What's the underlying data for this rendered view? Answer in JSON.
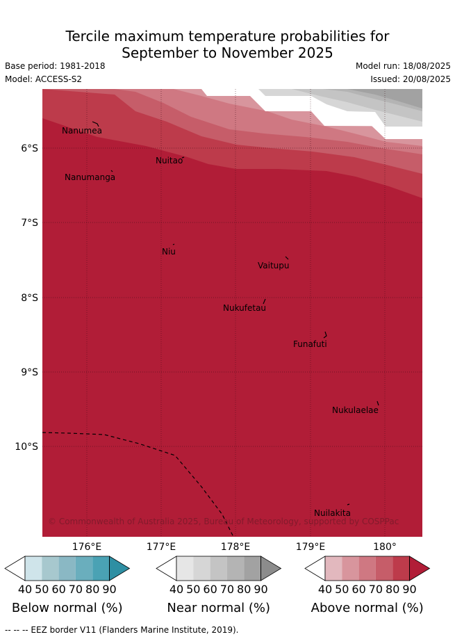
{
  "header": {
    "title_line1": "Tercile maximum temperature probabilities for",
    "title_line2": "September to November 2025",
    "base_period": "Base period: 1981-2018",
    "model": "Model: ACCESS-S2",
    "model_run": "Model run: 18/08/2025",
    "issued": "Issued: 20/08/2025"
  },
  "map": {
    "lat_labels": [
      "6°S",
      "7°S",
      "8°S",
      "9°S",
      "10°S"
    ],
    "lon_labels": [
      "176°E",
      "177°E",
      "178°E",
      "179°E",
      "180°"
    ],
    "places": [
      {
        "name": "Nanumea"
      },
      {
        "name": "Nuitao"
      },
      {
        "name": "Nanumanga"
      },
      {
        "name": "Niu"
      },
      {
        "name": "Vaitupu"
      },
      {
        "name": "Nukufetau"
      },
      {
        "name": "Funafuti"
      },
      {
        "name": "Nukulaelae"
      },
      {
        "name": "Nuilakita"
      }
    ],
    "copyright": "© Commonwealth of Australia 2025, Bureau of Meteorology, supported by COSPPac"
  },
  "colorbars": [
    {
      "title": "Below normal (%)",
      "ticks": [
        "40",
        "50",
        "60",
        "70",
        "80",
        "90"
      ],
      "colors": [
        "#cfe4ea",
        "#a7c8ce",
        "#8ab8c4",
        "#6aaebd",
        "#4aa2b4",
        "#2e8fa3"
      ]
    },
    {
      "title": "Near normal (%)",
      "ticks": [
        "40",
        "50",
        "60",
        "70",
        "80",
        "90"
      ],
      "colors": [
        "#e6e6e6",
        "#d6d6d6",
        "#c4c4c4",
        "#b4b4b4",
        "#a2a2a2",
        "#8c8c8c"
      ]
    },
    {
      "title": "Above normal (%)",
      "ticks": [
        "40",
        "50",
        "60",
        "70",
        "80",
        "90"
      ],
      "colors": [
        "#e2b8be",
        "#d8959d",
        "#cf7882",
        "#c65d69",
        "#bd3b4b",
        "#b11d37"
      ]
    }
  ],
  "footer": {
    "legend_text": "-- -- -- EEZ border V11 (Flanders Marine Institute, 2019)."
  }
}
